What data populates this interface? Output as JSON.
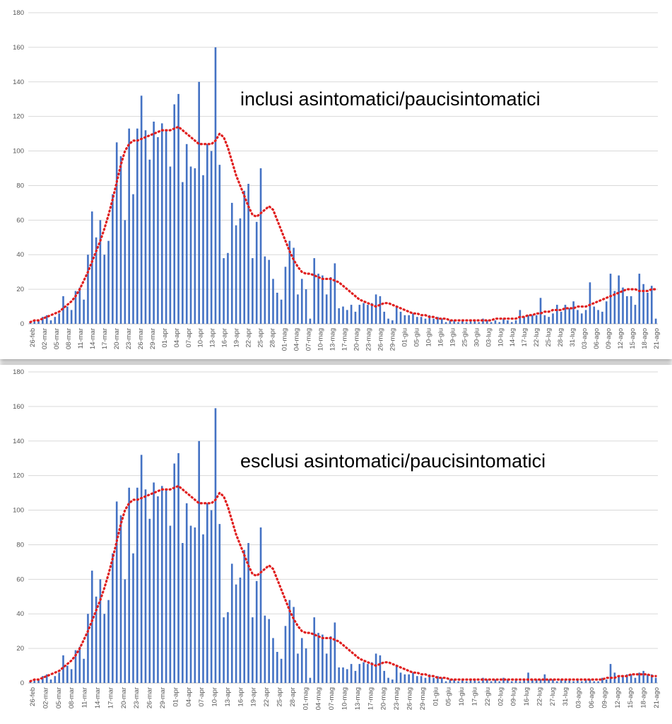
{
  "chart_data": [
    {
      "type": "bar",
      "annotation": "inclusi asintomatici/paucisintomatici",
      "ylim": [
        0,
        180
      ],
      "yticks": [
        0,
        20,
        40,
        60,
        80,
        100,
        120,
        140,
        160,
        180
      ],
      "grid": true,
      "date_range": [
        "26-feb",
        "21-ago"
      ],
      "xtick_labels": [
        "26-feb",
        "02-mar",
        "05-mar",
        "08-mar",
        "11-mar",
        "14-mar",
        "17-mar",
        "20-mar",
        "23-mar",
        "26-mar",
        "29-mar",
        "01-apr",
        "04-apr",
        "07-apr",
        "10-apr",
        "13-apr",
        "16-apr",
        "19-apr",
        "22-apr",
        "25-apr",
        "28-apr",
        "01-mag",
        "04-mag",
        "07-mag",
        "10-mag",
        "13-mag",
        "17-mag",
        "20-mag",
        "23-mag",
        "26-mag",
        "29-mag",
        "01-giu",
        "05-giu",
        "10-giu",
        "16-giu",
        "19-giu",
        "25-giu",
        "30-giu",
        "03-lug",
        "10-lug",
        "14-lug",
        "17-lug",
        "22-lug",
        "25-lug",
        "28-lug",
        "31-lug",
        "03-ago",
        "06-ago",
        "09-ago",
        "12-ago",
        "15-ago",
        "18-ago",
        "21-ago"
      ],
      "series": [
        {
          "style": "bar",
          "color": "#4472c4",
          "values": [
            1,
            2,
            2,
            4,
            5,
            2,
            4,
            6,
            16,
            10,
            8,
            19,
            21,
            14,
            40,
            65,
            50,
            60,
            40,
            48,
            75,
            105,
            97,
            60,
            113,
            75,
            113,
            132,
            112,
            95,
            117,
            108,
            116,
            112,
            91,
            127,
            133,
            82,
            104,
            91,
            90,
            140,
            86,
            104,
            100,
            160,
            92,
            38,
            41,
            70,
            57,
            61,
            77,
            81,
            38,
            59,
            90,
            39,
            37,
            26,
            18,
            14,
            33,
            48,
            44,
            17,
            26,
            20,
            3,
            38,
            29,
            28,
            17,
            27,
            35,
            9,
            10,
            8,
            11,
            7,
            11,
            12,
            11,
            12,
            17,
            16,
            7,
            3,
            2,
            10,
            7,
            5,
            5,
            6,
            4,
            4,
            3,
            5,
            3,
            4,
            3,
            1,
            2,
            2,
            1,
            2,
            1,
            2,
            2,
            1,
            3,
            2,
            1,
            2,
            1,
            3,
            2,
            1,
            2,
            8,
            4,
            5,
            5,
            5,
            15,
            5,
            4,
            6,
            11,
            7,
            11,
            9,
            13,
            8,
            6,
            8,
            24,
            10,
            8,
            7,
            13,
            29,
            19,
            28,
            21,
            16,
            16,
            11,
            29,
            23,
            18,
            22,
            3
          ]
        },
        {
          "style": "dotted-line",
          "color": "#e02020",
          "values": [
            1,
            2,
            2,
            3,
            4,
            5,
            6,
            7,
            9,
            11,
            13,
            16,
            20,
            25,
            30,
            36,
            42,
            48,
            55,
            63,
            72,
            82,
            92,
            100,
            104,
            106,
            106,
            107,
            108,
            109,
            110,
            111,
            112,
            112,
            112,
            113,
            114,
            112,
            110,
            108,
            106,
            104,
            104,
            104,
            104,
            106,
            110,
            108,
            102,
            94,
            86,
            80,
            74,
            68,
            63,
            62,
            64,
            66,
            68,
            66,
            60,
            54,
            48,
            42,
            37,
            33,
            30,
            29,
            29,
            28,
            27,
            26,
            26,
            26,
            25,
            24,
            22,
            20,
            18,
            16,
            14,
            13,
            12,
            11,
            10,
            11,
            12,
            12,
            11,
            10,
            9,
            8,
            7,
            6,
            6,
            5,
            5,
            4,
            4,
            3,
            3,
            3,
            2,
            2,
            2,
            2,
            2,
            2,
            2,
            2,
            2,
            2,
            2,
            3,
            3,
            3,
            3,
            3,
            3,
            4,
            4,
            5,
            5,
            6,
            6,
            7,
            7,
            8,
            8,
            8,
            9,
            9,
            9,
            10,
            10,
            10,
            11,
            12,
            13,
            14,
            15,
            16,
            17,
            18,
            19,
            20,
            20,
            20,
            19,
            19,
            19,
            20,
            20
          ]
        }
      ]
    },
    {
      "type": "bar",
      "annotation": "esclusi asintomatici/paucisintomatici",
      "ylim": [
        0,
        180
      ],
      "yticks": [
        0,
        20,
        40,
        60,
        80,
        100,
        120,
        140,
        160,
        180
      ],
      "grid": true,
      "date_range": [
        "26-feb",
        "21-ago"
      ],
      "xtick_labels": [
        "26-feb",
        "02-mar",
        "05-mar",
        "08-mar",
        "11-mar",
        "14-mar",
        "17-mar",
        "20-mar",
        "23-mar",
        "26-mar",
        "29-mar",
        "01-apr",
        "04-apr",
        "07-apr",
        "10-apr",
        "13-apr",
        "16-apr",
        "19-apr",
        "22-apr",
        "25-apr",
        "28-apr",
        "01-mag",
        "04-mag",
        "07-mag",
        "10-mag",
        "13-mag",
        "17-mag",
        "20-mag",
        "23-mag",
        "26-mag",
        "29-mag",
        "01-giu",
        "05-giu",
        "10-giu",
        "17-giu",
        "22-giu",
        "02-lug",
        "09-lug",
        "16-lug",
        "22-lug",
        "27-lug",
        "31-lug",
        "03-ago",
        "06-ago",
        "09-ago",
        "12-ago",
        "15-ago",
        "18-ago",
        "21-ago"
      ],
      "series": [
        {
          "style": "bar",
          "color": "#4472c4",
          "values": [
            1,
            2,
            2,
            4,
            5,
            2,
            4,
            6,
            16,
            10,
            8,
            19,
            21,
            14,
            40,
            65,
            50,
            60,
            40,
            48,
            75,
            105,
            97,
            60,
            113,
            75,
            113,
            132,
            112,
            95,
            116,
            108,
            114,
            112,
            91,
            127,
            133,
            81,
            104,
            91,
            90,
            140,
            86,
            104,
            100,
            159,
            92,
            38,
            41,
            69,
            57,
            61,
            77,
            81,
            38,
            59,
            90,
            39,
            37,
            26,
            18,
            14,
            33,
            48,
            44,
            17,
            26,
            20,
            3,
            38,
            29,
            28,
            17,
            27,
            35,
            9,
            9,
            8,
            11,
            7,
            11,
            12,
            11,
            12,
            17,
            16,
            7,
            3,
            2,
            10,
            6,
            5,
            5,
            6,
            4,
            4,
            3,
            5,
            3,
            4,
            3,
            1,
            2,
            2,
            1,
            2,
            1,
            2,
            2,
            1,
            3,
            2,
            1,
            2,
            1,
            3,
            2,
            1,
            2,
            1,
            2,
            6,
            2,
            2,
            2,
            5,
            2,
            2,
            1,
            2,
            2,
            2,
            1,
            2,
            1,
            2,
            2,
            1,
            1,
            3,
            2,
            11,
            6,
            4,
            4,
            5,
            5,
            3,
            6,
            7,
            5,
            5,
            3
          ]
        },
        {
          "style": "dotted-line",
          "color": "#e02020",
          "values": [
            1,
            2,
            2,
            3,
            4,
            5,
            6,
            7,
            9,
            11,
            13,
            16,
            20,
            25,
            30,
            36,
            42,
            48,
            55,
            63,
            72,
            82,
            92,
            100,
            104,
            106,
            106,
            107,
            108,
            109,
            110,
            111,
            112,
            112,
            112,
            113,
            114,
            112,
            110,
            108,
            106,
            104,
            104,
            104,
            104,
            106,
            110,
            108,
            102,
            94,
            86,
            80,
            74,
            68,
            63,
            62,
            64,
            66,
            68,
            66,
            60,
            54,
            48,
            42,
            37,
            33,
            30,
            29,
            29,
            28,
            27,
            26,
            26,
            26,
            25,
            24,
            22,
            20,
            18,
            16,
            14,
            13,
            12,
            11,
            10,
            11,
            12,
            12,
            11,
            10,
            9,
            8,
            7,
            6,
            6,
            5,
            5,
            4,
            4,
            3,
            3,
            3,
            2,
            2,
            2,
            2,
            2,
            2,
            2,
            2,
            2,
            2,
            2,
            2,
            2,
            2,
            2,
            2,
            2,
            2,
            2,
            2,
            2,
            2,
            2,
            2,
            2,
            2,
            2,
            2,
            2,
            2,
            2,
            2,
            2,
            2,
            2,
            2,
            2,
            2,
            3,
            3,
            3,
            4,
            4,
            4,
            5,
            5,
            5,
            5,
            5,
            4,
            4
          ]
        }
      ]
    }
  ]
}
